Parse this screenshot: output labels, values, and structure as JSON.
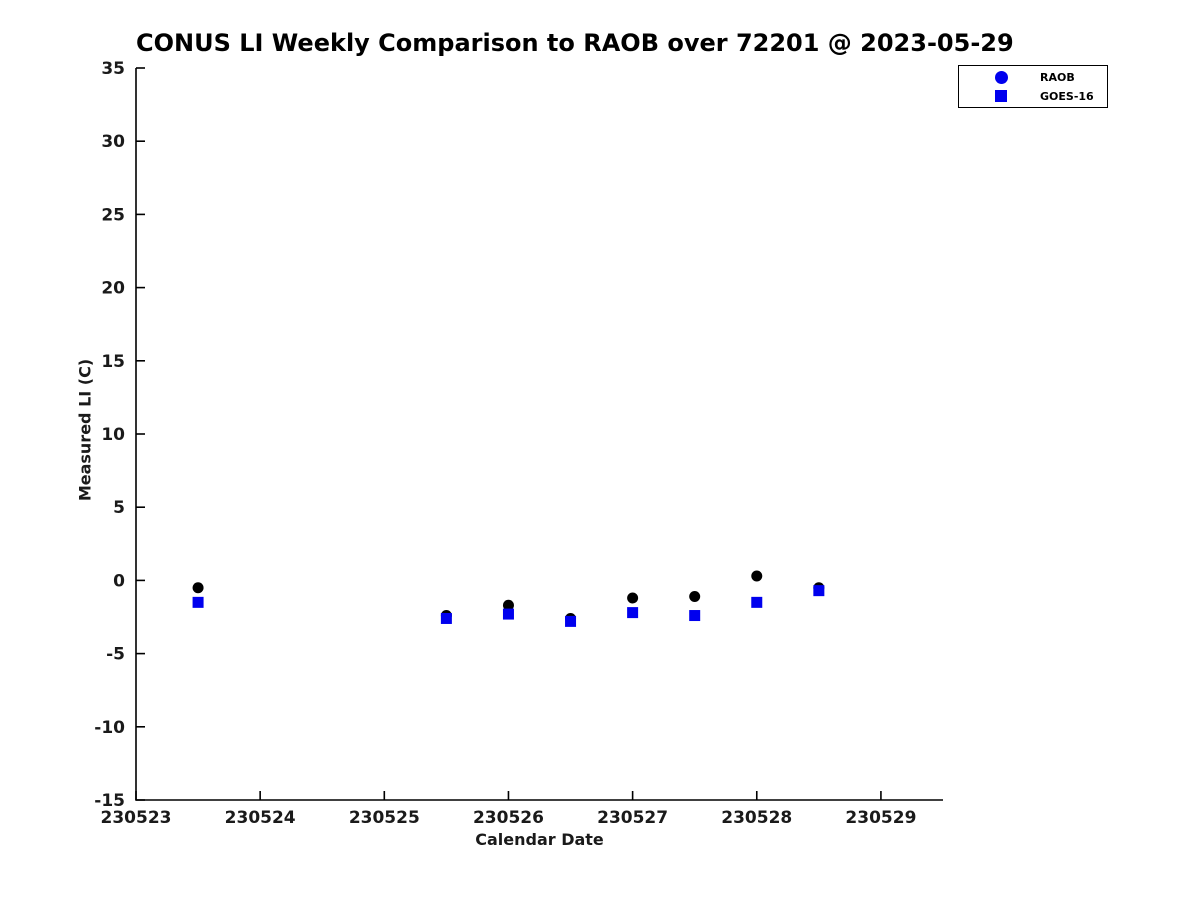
{
  "page": {
    "background": "#ffffff"
  },
  "chart_data": {
    "type": "scatter",
    "title": "CONUS LI Weekly Comparison to RAOB over 72201 @ 2023-05-29",
    "xlabel": "Calendar Date",
    "ylabel": "Measured LI (C)",
    "xlim": [
      230523,
      230529.5
    ],
    "ylim": [
      -15,
      35
    ],
    "x_ticks": [
      230523,
      230524,
      230525,
      230526,
      230527,
      230528,
      230529
    ],
    "y_ticks": [
      35,
      30,
      25,
      20,
      15,
      10,
      5,
      0,
      -5,
      -10,
      -15
    ],
    "grid": false,
    "axis_color": "#000000",
    "tick_label_color": "#1a1a1a",
    "legend": {
      "position": "top-right"
    },
    "series": [
      {
        "name": "RAOB",
        "marker": "circle",
        "plot_color": "#000000",
        "legend_color": "#0000ee",
        "x": [
          230523.5,
          230525.5,
          230526.0,
          230526.5,
          230527.0,
          230527.5,
          230528.0,
          230528.5
        ],
        "y": [
          -0.5,
          -2.4,
          -1.7,
          -2.6,
          -1.2,
          -1.1,
          0.3,
          -0.5
        ]
      },
      {
        "name": "GOES-16",
        "marker": "square",
        "plot_color": "#0000ee",
        "legend_color": "#0000ee",
        "x": [
          230523.5,
          230525.5,
          230526.0,
          230526.5,
          230527.0,
          230527.5,
          230528.0,
          230528.5
        ],
        "y": [
          -1.5,
          -2.6,
          -2.3,
          -2.8,
          -2.2,
          -2.4,
          -1.5,
          -0.7
        ]
      }
    ]
  }
}
